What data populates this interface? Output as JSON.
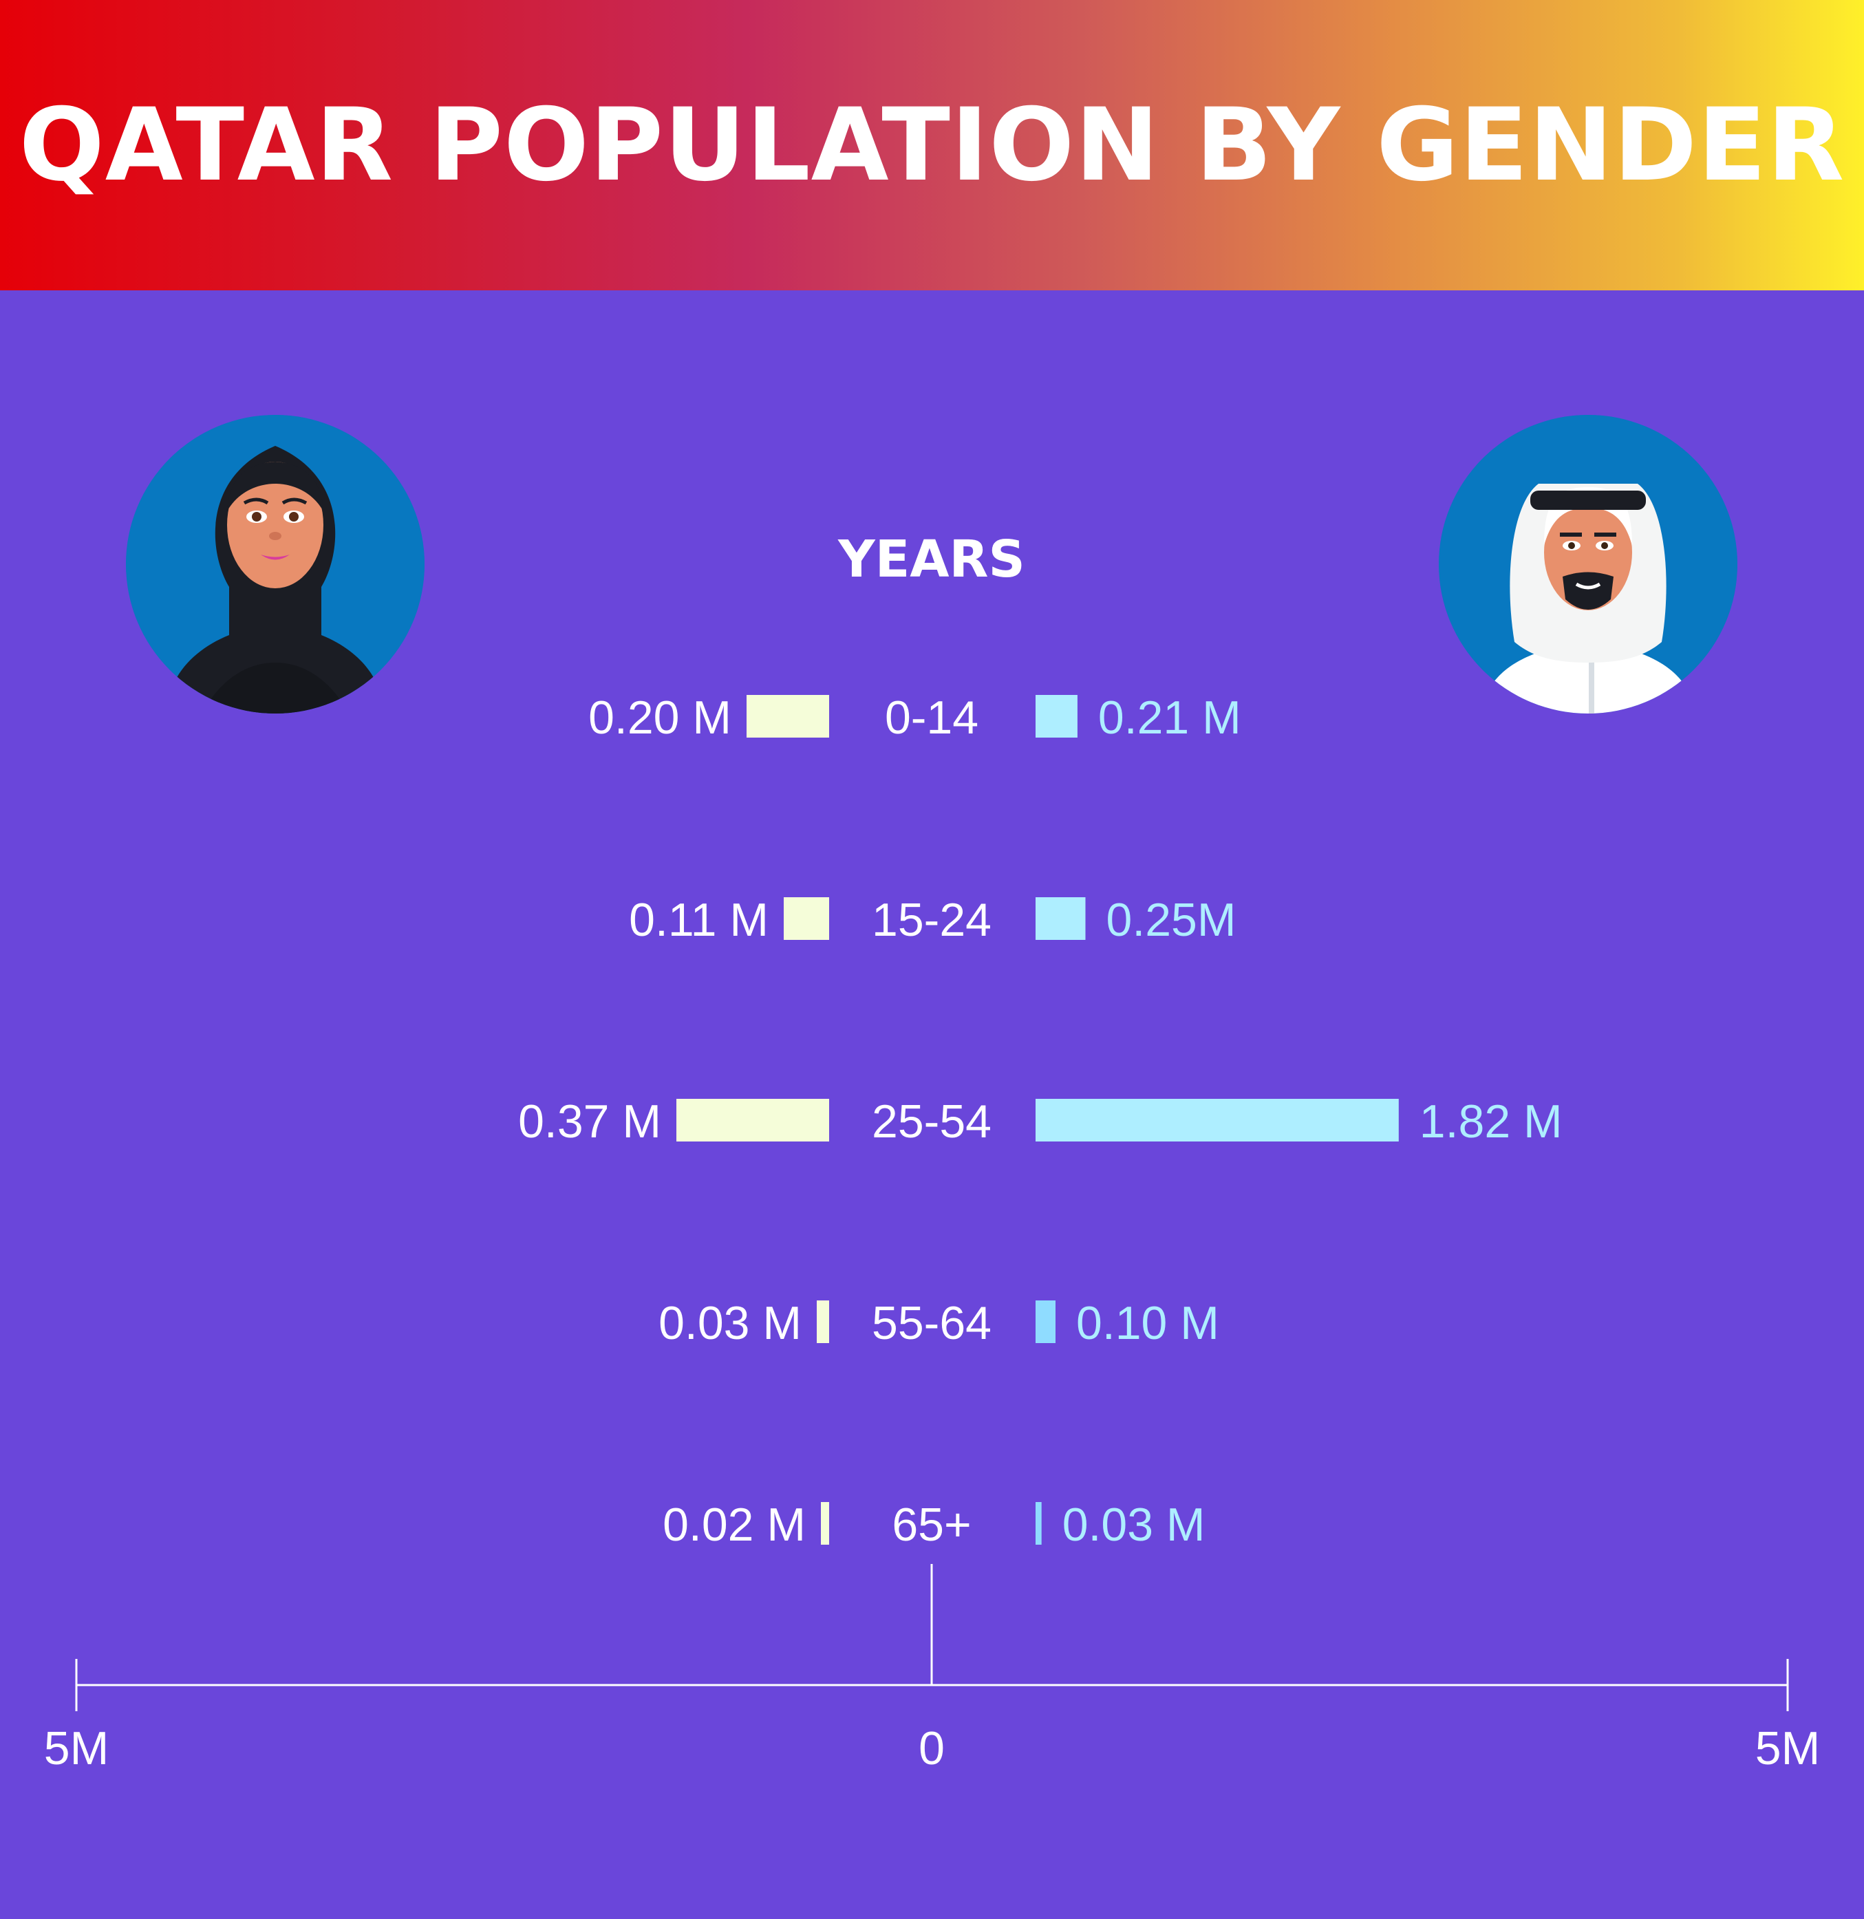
{
  "title": "QATAR POPULATION BY GENDER",
  "years_label": "YEARS",
  "colors": {
    "background": "#6a46da",
    "female_bar": "#f5fdd9",
    "male_bar_light": "#aeeeff",
    "male_bar_dark": "#8fdcff",
    "female_value_text": "#ffffff",
    "male_value_text": "#aeeeff",
    "avatar_circle": "#0878c0"
  },
  "avatars": {
    "female": "woman-in-hijab-icon",
    "male": "man-in-ghutra-icon"
  },
  "chart_data": {
    "type": "bar",
    "orientation": "horizontal",
    "subtype": "population-pyramid",
    "categories": [
      "0-14",
      "15-24",
      "25-54",
      "55-64",
      "65+"
    ],
    "series": [
      {
        "side": "left",
        "values": [
          0.2,
          0.11,
          0.37,
          0.03,
          0.02
        ],
        "labels": [
          "0.20 M",
          "0.11 M",
          "0.37 M",
          "0.03 M",
          "0.02 M"
        ]
      },
      {
        "side": "right",
        "values": [
          0.21,
          0.25,
          1.82,
          0.1,
          0.03
        ],
        "labels": [
          "0.21 M",
          "0.25M",
          "1.82 M",
          "0.10 M",
          "0.03 M"
        ]
      }
    ],
    "xlim": [
      -5,
      5
    ],
    "x_ticks": [
      "5M",
      "0",
      "5M"
    ]
  }
}
